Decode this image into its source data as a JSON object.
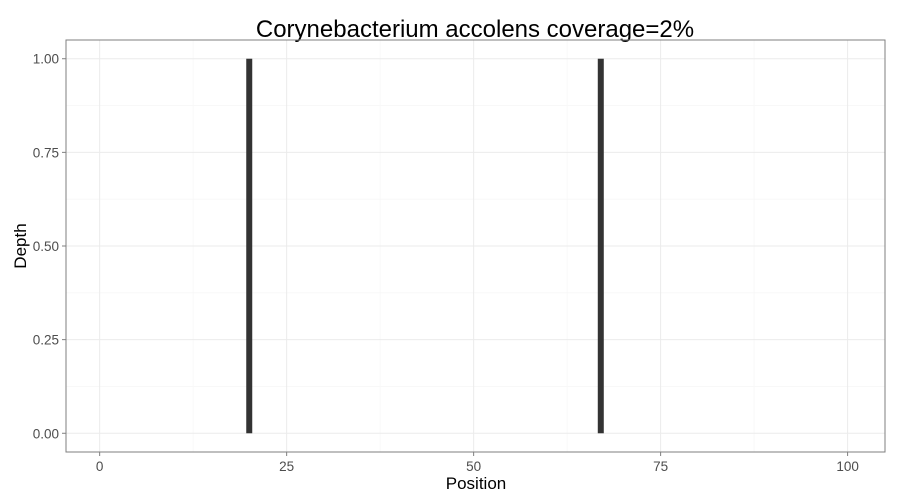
{
  "chart_data": {
    "type": "bar",
    "title": "Corynebacterium accolens coverage=2%",
    "xlabel": "Position",
    "ylabel": "Depth",
    "xlim": [
      -4.5,
      105
    ],
    "ylim": [
      -0.05,
      1.05
    ],
    "x_ticks": [
      0,
      25,
      50,
      75,
      100
    ],
    "x_tick_labels": [
      "0",
      "25",
      "50",
      "75",
      "100"
    ],
    "y_ticks": [
      0,
      0.25,
      0.5,
      0.75,
      1
    ],
    "y_tick_labels": [
      "0.00",
      "0.25",
      "0.50",
      "0.75",
      "1.00"
    ],
    "grid": true,
    "bars": [
      {
        "x": 20,
        "y": 1
      },
      {
        "x": 67,
        "y": 1
      }
    ],
    "colors": {
      "bar": "#333333",
      "panel_border": "#7f7f7f",
      "major_grid": "#ebebeb",
      "minor_grid": "#f7f7f7",
      "tick_label": "#4d4d4d"
    }
  }
}
